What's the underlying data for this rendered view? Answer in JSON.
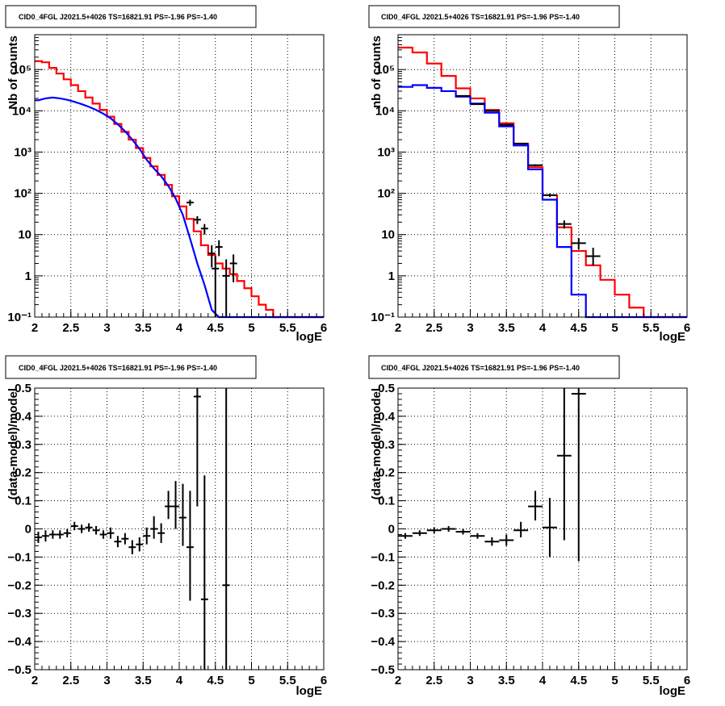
{
  "panels": [
    {
      "title": "CID0_4FGL J2021.5+4026 TS=16821.91 PS=-1.96 PS=-1.40",
      "xlabel": "logE",
      "ylabel": "Nb of counts",
      "x_tick_labels": [
        "2",
        "2.5",
        "3",
        "3.5",
        "4",
        "4.5",
        "5",
        "5.5",
        "6"
      ],
      "y_tick_labels": [
        "10⁻¹",
        "1",
        "10",
        "10²",
        "10³",
        "10⁴",
        "10⁵"
      ],
      "chart_data": {
        "type": "histogram",
        "y_scale": "log",
        "xlim": [
          2,
          6
        ],
        "ylim": [
          0.1,
          700000
        ],
        "grid": true,
        "bin_width": 0.1,
        "series": [
          {
            "color": "#ff0000",
            "style": "step",
            "x": [
              2.0,
              2.1,
              2.2,
              2.3,
              2.4,
              2.5,
              2.6,
              2.7,
              2.8,
              2.9,
              3.0,
              3.1,
              3.2,
              3.3,
              3.4,
              3.5,
              3.6,
              3.7,
              3.8,
              3.9,
              4.0,
              4.1,
              4.2,
              4.3,
              4.4,
              4.5,
              4.6,
              4.7,
              4.8,
              4.9,
              5.0,
              5.1,
              5.2,
              5.3,
              5.4,
              5.5,
              5.6,
              5.7,
              5.8,
              5.9
            ],
            "y": [
              160000,
              150000,
              110000,
              80000,
              58000,
              42000,
              30000,
              21000,
              15000,
              10500,
              7200,
              4800,
              3100,
              2000,
              1250,
              720,
              450,
              280,
              160,
              85,
              48,
              24,
              12,
              5.5,
              3.2,
              2.0,
              1.5,
              1.1,
              0.75,
              0.5,
              0.32,
              0.2,
              0.15,
              0.1,
              0.1,
              0.1,
              0.1,
              0.1,
              0.1,
              0.1
            ]
          },
          {
            "color": "#0000ff",
            "style": "curve",
            "x": [
              2.0,
              2.1,
              2.2,
              2.3,
              2.4,
              2.5,
              2.6,
              2.7,
              2.8,
              2.9,
              3.0,
              3.1,
              3.2,
              3.3,
              3.4,
              3.5,
              3.6,
              3.7,
              3.8,
              3.9,
              4.0,
              4.1,
              4.2,
              4.3,
              4.4,
              4.5,
              4.6,
              4.7,
              4.8,
              4.9,
              5.0,
              5.1,
              5.2,
              5.3,
              5.4,
              5.5,
              5.6,
              5.7,
              5.8,
              5.9
            ],
            "y": [
              18000,
              20000,
              21000,
              20000,
              18500,
              16500,
              14500,
              12500,
              10500,
              8500,
              6600,
              4700,
              3200,
              2000,
              1200,
              650,
              400,
              260,
              150,
              75,
              30,
              8,
              2,
              0.6,
              0.15,
              0.1,
              0.1,
              0.1,
              0.1,
              0.1,
              0.1,
              0.1,
              0.1,
              0.1,
              0.1,
              0.1,
              0.1,
              0.1,
              0.1,
              0.1
            ]
          },
          {
            "color": "#000000",
            "style": "points",
            "points": [
              {
                "x": 4.15,
                "y": 60,
                "ylo": 50,
                "yhi": 70
              },
              {
                "x": 4.25,
                "y": 23,
                "ylo": 18,
                "yhi": 28
              },
              {
                "x": 4.35,
                "y": 14,
                "ylo": 10,
                "yhi": 18
              },
              {
                "x": 4.45,
                "y": 3.5,
                "ylo": 1.6,
                "yhi": 5.5
              },
              {
                "x": 4.5,
                "y": 1.5,
                "ylo": 0.1,
                "yhi": 3
              },
              {
                "x": 4.55,
                "y": 5,
                "ylo": 3,
                "yhi": 7.3
              },
              {
                "x": 4.65,
                "y": 1.0,
                "ylo": 0.1,
                "yhi": 2.5
              },
              {
                "x": 4.75,
                "y": 2.0,
                "ylo": 0.7,
                "yhi": 3.3
              }
            ]
          }
        ]
      }
    },
    {
      "title": "CID0_4FGL J2021.5+4026 TS=16821.91 PS=-1.96 PS=-1.40",
      "xlabel": "logE",
      "ylabel": "nb of counts",
      "x_tick_labels": [
        "2",
        "2.5",
        "3",
        "3.5",
        "4",
        "4.5",
        "5",
        "5.5",
        "6"
      ],
      "y_tick_labels": [
        "10⁻¹",
        "1",
        "10",
        "10²",
        "10³",
        "10⁴",
        "10⁵"
      ],
      "chart_data": {
        "type": "histogram",
        "y_scale": "log",
        "xlim": [
          2,
          6
        ],
        "ylim": [
          0.1,
          700000
        ],
        "grid": true,
        "bin_width": 0.2,
        "series": [
          {
            "color": "#ff0000",
            "style": "step",
            "x": [
              2.0,
              2.2,
              2.4,
              2.6,
              2.8,
              3.0,
              3.2,
              3.4,
              3.6,
              3.8,
              4.0,
              4.2,
              4.4,
              4.6,
              4.8,
              5.0,
              5.2,
              5.4,
              5.6,
              5.8
            ],
            "y": [
              340000,
              260000,
              140000,
              70000,
              35000,
              20000,
              10500,
              5000,
              1600,
              430,
              90,
              15,
              4,
              1.8,
              0.8,
              0.35,
              0.17,
              0.1,
              0.1,
              0.1
            ]
          },
          {
            "color": "#0000ff",
            "style": "step",
            "x": [
              2.0,
              2.2,
              2.4,
              2.6,
              2.8,
              3.0,
              3.2,
              3.4,
              3.6,
              3.8,
              4.0,
              4.2,
              4.4,
              4.6,
              4.8,
              5.0,
              5.2,
              5.4,
              5.6,
              5.8
            ],
            "y": [
              38000,
              42000,
              36000,
              30000,
              22000,
              15000,
              9000,
              4200,
              1450,
              380,
              70,
              5,
              0.35,
              0.1,
              0.1,
              0.1,
              0.1,
              0.1,
              0.1,
              0.1
            ]
          },
          {
            "color": "#000000",
            "style": "points",
            "points": [
              {
                "x": 2.9,
                "y": 23000,
                "ylo": 22500,
                "yhi": 23500
              },
              {
                "x": 3.1,
                "y": 14500,
                "ylo": 14100,
                "yhi": 14900
              },
              {
                "x": 3.3,
                "y": 10000,
                "ylo": 9700,
                "yhi": 10300
              },
              {
                "x": 3.5,
                "y": 4600,
                "ylo": 4450,
                "yhi": 4750
              },
              {
                "x": 3.7,
                "y": 1600,
                "ylo": 1540,
                "yhi": 1660
              },
              {
                "x": 3.9,
                "y": 480,
                "ylo": 455,
                "yhi": 505
              },
              {
                "x": 4.1,
                "y": 90,
                "ylo": 82,
                "yhi": 98
              },
              {
                "x": 4.3,
                "y": 18,
                "ylo": 14,
                "yhi": 22
              },
              {
                "x": 4.5,
                "y": 6.2,
                "ylo": 4.3,
                "yhi": 8.3
              },
              {
                "x": 4.7,
                "y": 3.0,
                "ylo": 1.8,
                "yhi": 4.8
              }
            ]
          }
        ]
      }
    },
    {
      "title": "CID0_4FGL J2021.5+4026 TS=16821.91 PS=-1.96 PS=-1.40",
      "xlabel": "logE",
      "ylabel": "(data-model)/model",
      "x_tick_labels": [
        "2",
        "2.5",
        "3",
        "3.5",
        "4",
        "4.5",
        "5",
        "5.5",
        "6"
      ],
      "y_tick_labels": [
        "−0.5",
        "−0.4",
        "−0.3",
        "−0.2",
        "−0.1",
        "0",
        "0.1",
        "0.2",
        "0.3",
        "0.4",
        "0.5"
      ],
      "chart_data": {
        "type": "scatter",
        "y_scale": "linear",
        "xlim": [
          2,
          6
        ],
        "ylim": [
          -0.5,
          0.5
        ],
        "grid": true,
        "bin_width": 0.1,
        "series": [
          {
            "color": "#000000",
            "style": "points",
            "points": [
              {
                "x": 2.05,
                "y": -0.03,
                "ylo": -0.05,
                "yhi": -0.01
              },
              {
                "x": 2.15,
                "y": -0.025,
                "ylo": -0.045,
                "yhi": -0.005
              },
              {
                "x": 2.25,
                "y": -0.02,
                "ylo": -0.035,
                "yhi": -0.005
              },
              {
                "x": 2.35,
                "y": -0.02,
                "ylo": -0.035,
                "yhi": -0.005
              },
              {
                "x": 2.45,
                "y": -0.015,
                "ylo": -0.03,
                "yhi": 0.0
              },
              {
                "x": 2.55,
                "y": 0.01,
                "ylo": -0.005,
                "yhi": 0.025
              },
              {
                "x": 2.65,
                "y": 0.0,
                "ylo": -0.015,
                "yhi": 0.015
              },
              {
                "x": 2.75,
                "y": 0.005,
                "ylo": -0.01,
                "yhi": 0.02
              },
              {
                "x": 2.85,
                "y": -0.005,
                "ylo": -0.02,
                "yhi": 0.01
              },
              {
                "x": 2.95,
                "y": -0.02,
                "ylo": -0.035,
                "yhi": -0.005
              },
              {
                "x": 3.05,
                "y": -0.015,
                "ylo": -0.035,
                "yhi": 0.005
              },
              {
                "x": 3.15,
                "y": -0.045,
                "ylo": -0.065,
                "yhi": -0.025
              },
              {
                "x": 3.25,
                "y": -0.035,
                "ylo": -0.055,
                "yhi": -0.015
              },
              {
                "x": 3.35,
                "y": -0.065,
                "ylo": -0.09,
                "yhi": -0.04
              },
              {
                "x": 3.45,
                "y": -0.055,
                "ylo": -0.08,
                "yhi": -0.03
              },
              {
                "x": 3.55,
                "y": -0.025,
                "ylo": -0.055,
                "yhi": 0.005
              },
              {
                "x": 3.65,
                "y": 0.0,
                "ylo": -0.035,
                "yhi": 0.045
              },
              {
                "x": 3.75,
                "y": -0.015,
                "ylo": -0.05,
                "yhi": 0.02
              },
              {
                "x": 3.85,
                "y": 0.08,
                "ylo": 0.035,
                "yhi": 0.135
              },
              {
                "x": 3.95,
                "y": 0.08,
                "ylo": 0.0,
                "yhi": 0.17
              },
              {
                "x": 4.05,
                "y": 0.04,
                "ylo": -0.06,
                "yhi": 0.16
              },
              {
                "x": 4.15,
                "y": -0.065,
                "ylo": -0.255,
                "yhi": 0.135
              },
              {
                "x": 4.25,
                "y": 0.47,
                "ylo": 0.08,
                "yhi": 0.5
              },
              {
                "x": 4.35,
                "y": -0.25,
                "ylo": -0.5,
                "yhi": 0.19
              },
              {
                "x": 4.65,
                "y": -0.2,
                "ylo": -0.5,
                "yhi": 0.5
              }
            ]
          }
        ]
      }
    },
    {
      "title": "CID0_4FGL J2021.5+4026 TS=16821.91 PS=-1.96 PS=-1.40",
      "xlabel": "logE",
      "ylabel": "(data-model)/model",
      "x_tick_labels": [
        "2",
        "2.5",
        "3",
        "3.5",
        "4",
        "4.5",
        "5",
        "5.5",
        "6"
      ],
      "y_tick_labels": [
        "−0.5",
        "−0.4",
        "−0.3",
        "−0.2",
        "−0.1",
        "0",
        "0.1",
        "0.2",
        "0.3",
        "0.4",
        "0.5"
      ],
      "chart_data": {
        "type": "scatter",
        "y_scale": "linear",
        "xlim": [
          2,
          6
        ],
        "ylim": [
          -0.5,
          0.5
        ],
        "grid": true,
        "bin_width": 0.2,
        "series": [
          {
            "color": "#000000",
            "style": "points",
            "points": [
              {
                "x": 2.1,
                "y": -0.025,
                "ylo": -0.035,
                "yhi": -0.015
              },
              {
                "x": 2.3,
                "y": -0.015,
                "ylo": -0.025,
                "yhi": -0.005
              },
              {
                "x": 2.5,
                "y": -0.005,
                "ylo": -0.015,
                "yhi": 0.005
              },
              {
                "x": 2.7,
                "y": 0.0,
                "ylo": -0.01,
                "yhi": 0.01
              },
              {
                "x": 2.9,
                "y": -0.01,
                "ylo": -0.02,
                "yhi": 0.0
              },
              {
                "x": 3.1,
                "y": -0.025,
                "ylo": -0.035,
                "yhi": -0.015
              },
              {
                "x": 3.3,
                "y": -0.045,
                "ylo": -0.06,
                "yhi": -0.03
              },
              {
                "x": 3.5,
                "y": -0.04,
                "ylo": -0.06,
                "yhi": -0.02
              },
              {
                "x": 3.7,
                "y": -0.005,
                "ylo": -0.03,
                "yhi": 0.025
              },
              {
                "x": 3.9,
                "y": 0.08,
                "ylo": 0.03,
                "yhi": 0.135
              },
              {
                "x": 4.1,
                "y": 0.005,
                "ylo": -0.1,
                "yhi": 0.11
              },
              {
                "x": 4.3,
                "y": 0.26,
                "ylo": -0.04,
                "yhi": 0.5
              },
              {
                "x": 4.5,
                "y": 0.48,
                "ylo": -0.115,
                "yhi": 0.5
              }
            ]
          }
        ]
      }
    }
  ]
}
